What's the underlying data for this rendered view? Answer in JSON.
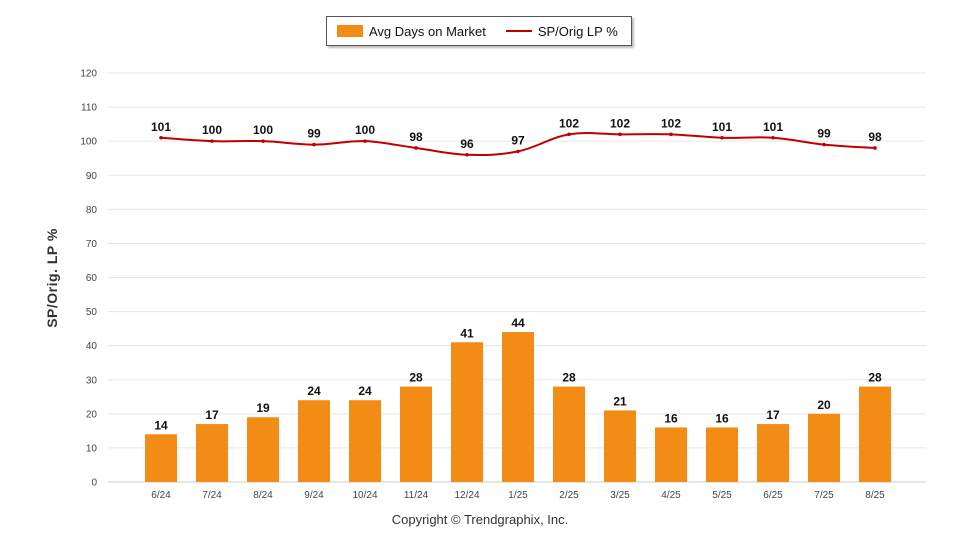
{
  "legend": {
    "bar_label": "Avg Days on Market",
    "line_label": "SP/Orig LP %"
  },
  "y_axis_title": "SP/Orig. LP %",
  "copyright": "Copyright © Trendgraphix, Inc.",
  "colors": {
    "bar": "#F28C14",
    "line": "#C00000",
    "grid": "#e6e6e6"
  },
  "chart_data": {
    "type": "bar",
    "categories": [
      "6/24",
      "7/24",
      "8/24",
      "9/24",
      "10/24",
      "11/24",
      "12/24",
      "1/25",
      "2/25",
      "3/25",
      "4/25",
      "5/25",
      "6/25",
      "7/25",
      "8/25"
    ],
    "series": [
      {
        "name": "Avg Days on Market",
        "type": "bar",
        "values": [
          14,
          17,
          19,
          24,
          24,
          28,
          41,
          44,
          28,
          21,
          16,
          16,
          17,
          20,
          28
        ]
      },
      {
        "name": "SP/Orig LP %",
        "type": "line",
        "values": [
          101,
          100,
          100,
          99,
          100,
          98,
          96,
          97,
          102,
          102,
          102,
          101,
          101,
          99,
          98
        ]
      }
    ],
    "ylabel": "SP/Orig. LP %",
    "ylim": [
      0,
      120
    ],
    "yticks": [
      0,
      10,
      20,
      30,
      40,
      50,
      60,
      70,
      80,
      90,
      100,
      110,
      120
    ],
    "grid": true,
    "legend_position": "top-center"
  }
}
